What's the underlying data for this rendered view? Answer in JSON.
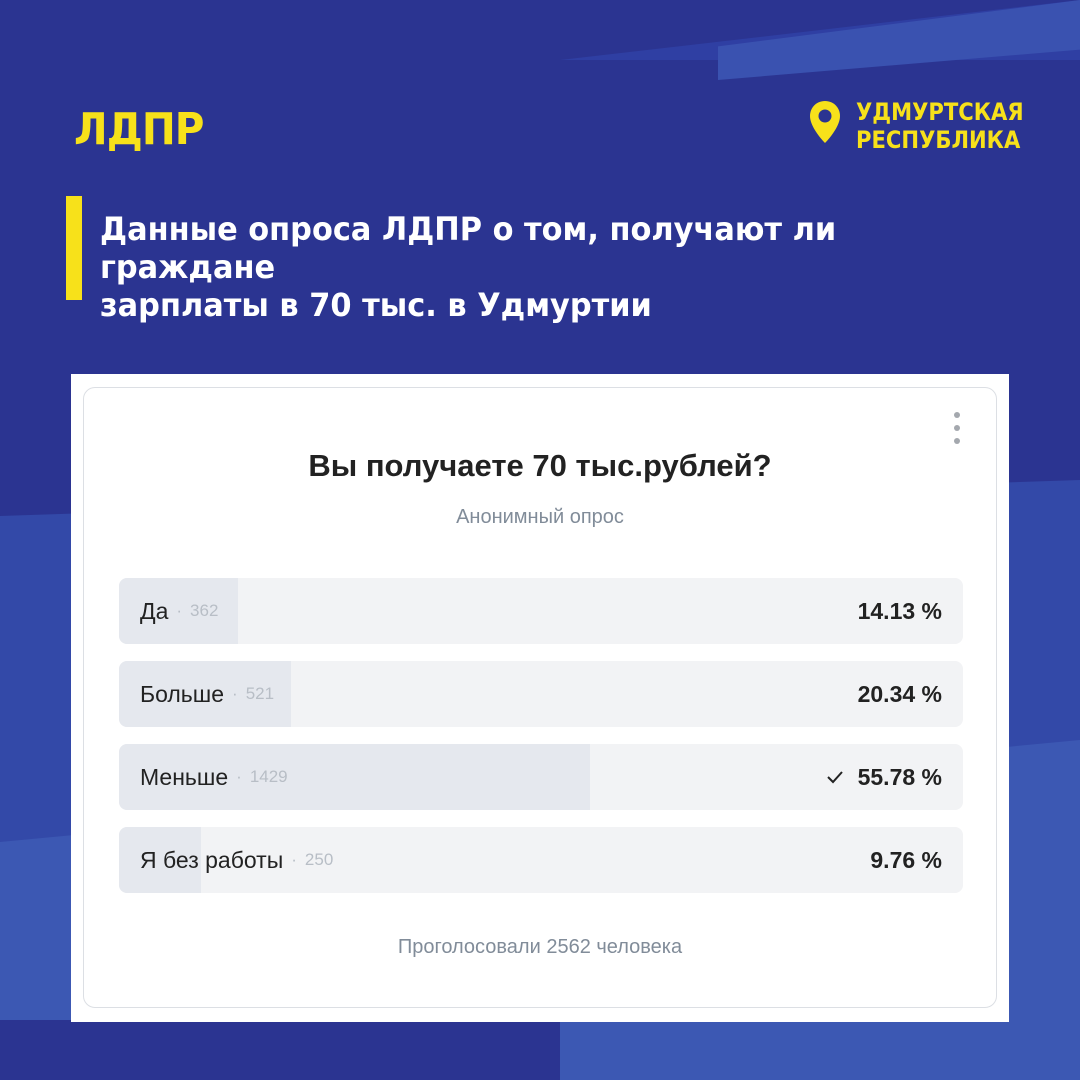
{
  "colors": {
    "background": "#2b3491",
    "accent": "#f7e11a",
    "card": "#ffffff"
  },
  "header": {
    "logo": "ЛДПР",
    "region_line1": "УДМУРТСКАЯ",
    "region_line2": "РЕСПУБЛИКА",
    "region_icon": "map-pin-icon"
  },
  "headline": {
    "line1": "Данные опроса ЛДПР о том, получают ли граждане",
    "line2": "зарплаты в 70 тыс. в Удмуртии"
  },
  "poll": {
    "title": "Вы получаете 70 тыс.рублей?",
    "subtitle": "Анонимный опрос",
    "more_icon": "more-vertical-icon",
    "options": [
      {
        "label": "Да",
        "count": "362",
        "percent_text": "14.13 %",
        "share": 0.1413,
        "selected": false
      },
      {
        "label": "Больше",
        "count": "521",
        "percent_text": "20.34 %",
        "share": 0.2034,
        "selected": false
      },
      {
        "label": "Меньше",
        "count": "1429",
        "percent_text": "55.78 %",
        "share": 0.5578,
        "selected": true
      },
      {
        "label": "Я без работы",
        "count": "250",
        "percent_text": "9.76 %",
        "share": 0.0976,
        "selected": false
      }
    ],
    "votes": "Проголосовали 2562 человека"
  }
}
